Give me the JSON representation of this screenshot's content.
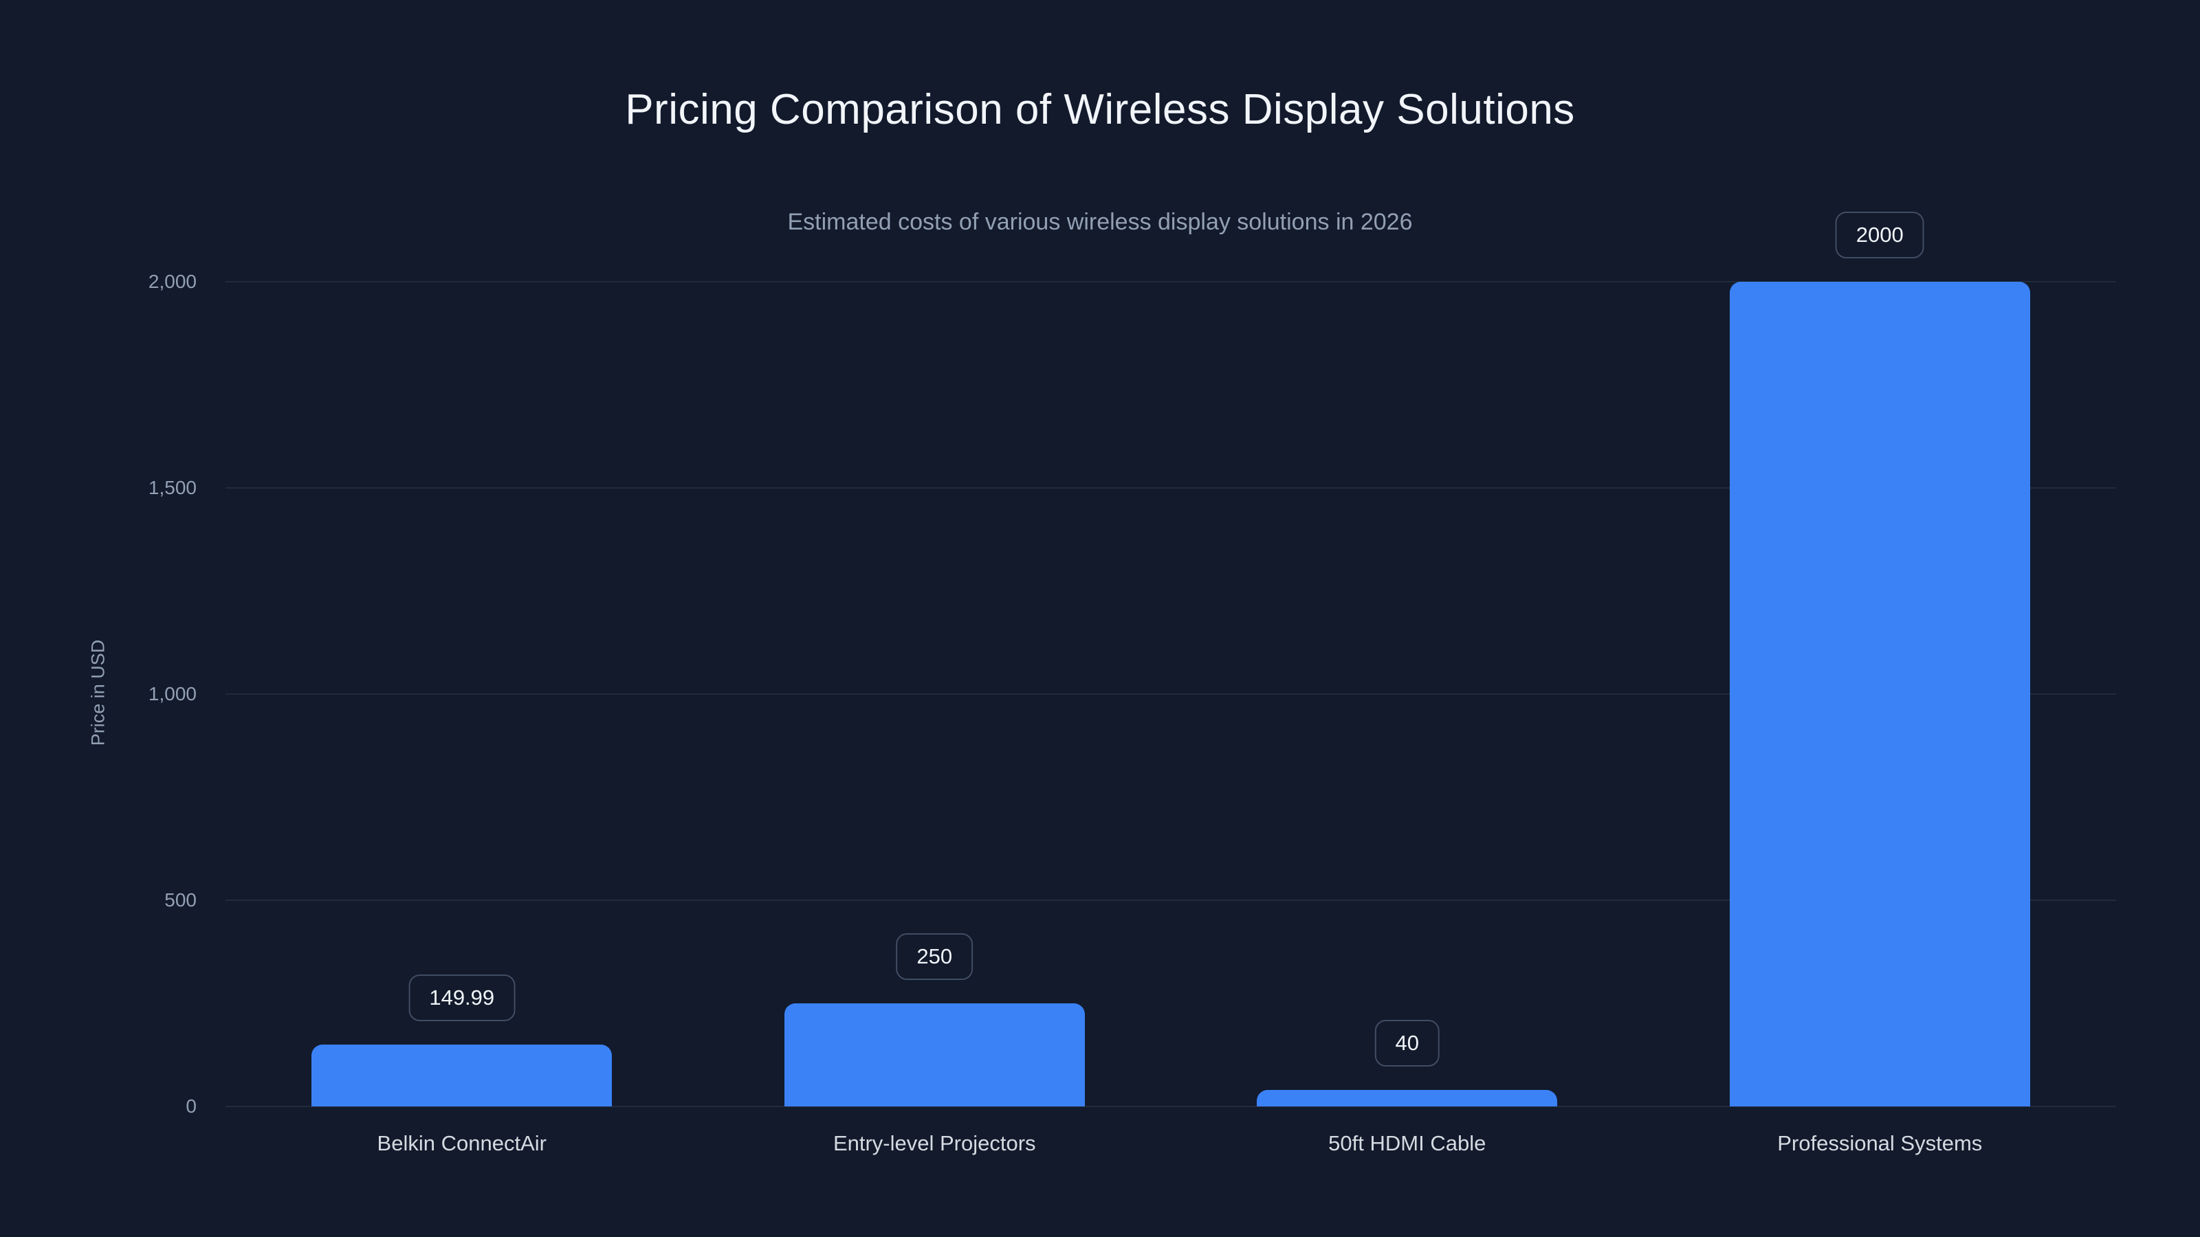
{
  "chart_data": {
    "type": "bar",
    "title": "Pricing Comparison of Wireless Display Solutions",
    "subtitle": "Estimated costs of various wireless display solutions in 2026",
    "ylabel": "Price in USD",
    "xlabel": "",
    "categories": [
      "Belkin ConnectAir",
      "Entry-level Projectors",
      "50ft HDMI Cable",
      "Professional Systems"
    ],
    "values": [
      149.99,
      250,
      40,
      2000
    ],
    "value_labels": [
      "149.99",
      "250",
      "40",
      "2000"
    ],
    "ylim": [
      0,
      2000
    ],
    "yticks": [
      0,
      500,
      1000,
      1500,
      2000
    ],
    "ytick_labels": [
      "0",
      "500",
      "1,000",
      "1,500",
      "2,000"
    ],
    "grid": true,
    "legend": false,
    "colors": {
      "background": "#121a2c",
      "bar": "#3b82f6",
      "grid": "#222b3c",
      "title": "#f2f5f9",
      "subtitle": "#93a0b4",
      "tick": "#93a0b4",
      "category": "#d6dbe2",
      "badge_border": "#414d63",
      "badge_text": "#f1f5f9"
    }
  }
}
